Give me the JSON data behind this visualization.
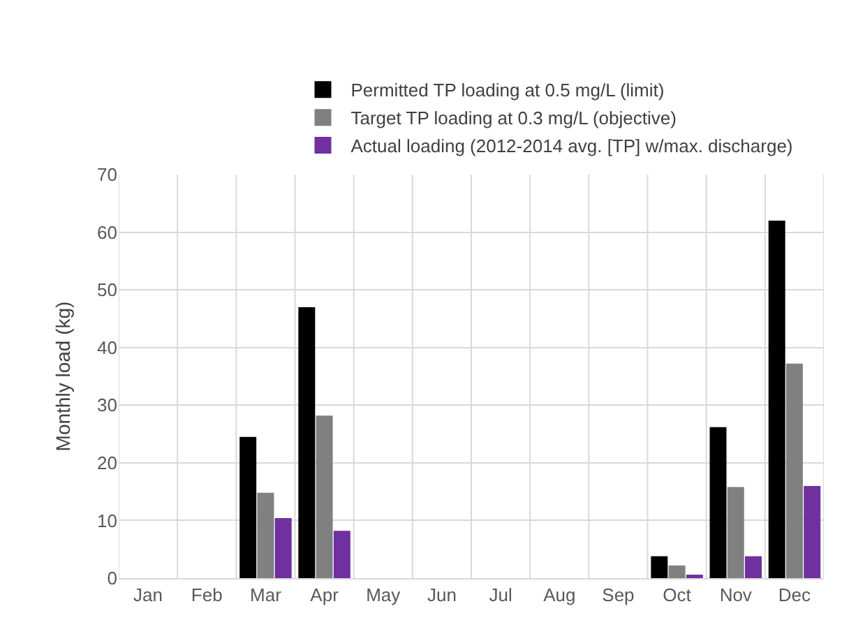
{
  "chart_data": {
    "type": "bar",
    "ylabel": "Monthly load (kg)",
    "categories": [
      "Jan",
      "Feb",
      "Mar",
      "Apr",
      "May",
      "Jun",
      "Jul",
      "Aug",
      "Sep",
      "Oct",
      "Nov",
      "Dec"
    ],
    "series": [
      {
        "name": "Permitted TP loading at 0.5 mg/L (limit)",
        "color": "#000000",
        "values": [
          null,
          null,
          24.5,
          47,
          null,
          null,
          null,
          null,
          null,
          3.8,
          26.2,
          62
        ]
      },
      {
        "name": "Target TP loading at 0.3 mg/L (objective)",
        "color": "#808080",
        "values": [
          null,
          null,
          14.8,
          28.2,
          null,
          null,
          null,
          null,
          null,
          2.2,
          15.8,
          37.2
        ]
      },
      {
        "name": "Actual loading (2012-2014 avg. [TP] w/max. discharge)",
        "color": "#7030a0",
        "values": [
          null,
          null,
          10.4,
          8.2,
          null,
          null,
          null,
          null,
          null,
          0.6,
          3.8,
          16
        ]
      }
    ],
    "ylim": [
      0,
      70
    ],
    "yticks": [
      0,
      10,
      20,
      30,
      40,
      50,
      60,
      70
    ],
    "grid": true,
    "legend": "top"
  }
}
